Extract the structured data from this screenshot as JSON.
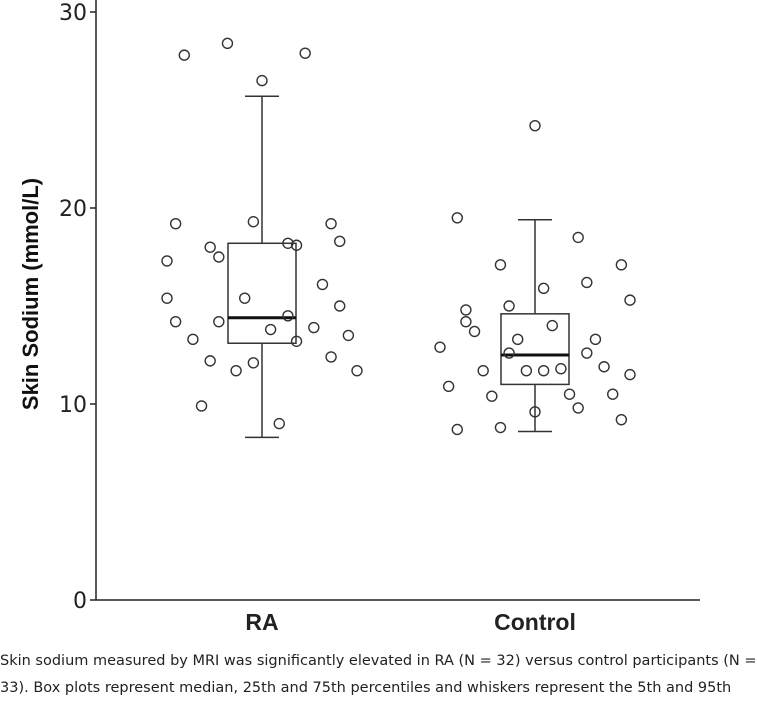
{
  "chart_data": {
    "type": "box",
    "ylabel": "Skin Sodium (mmol/L)",
    "xlabel": "",
    "ylim": [
      0,
      30
    ],
    "yticks": [
      0,
      10,
      20,
      30
    ],
    "grid": false,
    "categories": [
      "RA",
      "Control"
    ],
    "boxes": [
      {
        "category": "RA",
        "whisker_low": 8.3,
        "q1": 13.1,
        "median": 14.4,
        "q3": 18.2,
        "whisker_high": 25.7,
        "points": [
          17.3,
          18.2,
          18.0,
          19.2,
          19.3,
          19.2,
          18.1,
          17.5,
          18.3,
          26.5,
          27.8,
          27.9,
          28.4,
          13.5,
          13.8,
          13.3,
          13.9,
          11.7,
          11.7,
          9.0,
          9.9,
          16.1,
          15.4,
          15.4,
          14.5,
          12.2,
          12.4,
          12.1,
          14.2,
          13.2,
          14.2,
          15.0
        ]
      },
      {
        "category": "Control",
        "whisker_low": 8.6,
        "q1": 11.0,
        "median": 12.5,
        "q3": 14.6,
        "whisker_high": 19.4,
        "points": [
          24.2,
          19.5,
          18.5,
          17.1,
          17.1,
          15.9,
          14.8,
          16.2,
          15.0,
          15.3,
          14.0,
          13.7,
          13.3,
          13.3,
          12.9,
          11.8,
          11.7,
          11.9,
          11.7,
          10.9,
          10.5,
          10.4,
          10.5,
          9.6,
          8.7,
          9.8,
          8.8,
          9.2,
          11.7,
          14.2,
          12.6,
          12.6,
          11.5
        ]
      }
    ]
  },
  "caption": {
    "line1": "Skin sodium measured by MRI was significantly elevated in RA (N = 32) versus control participants (N =",
    "line2": "33). Box plots represent median, 25th and 75th percentiles and whiskers represent the 5th and 95th"
  }
}
